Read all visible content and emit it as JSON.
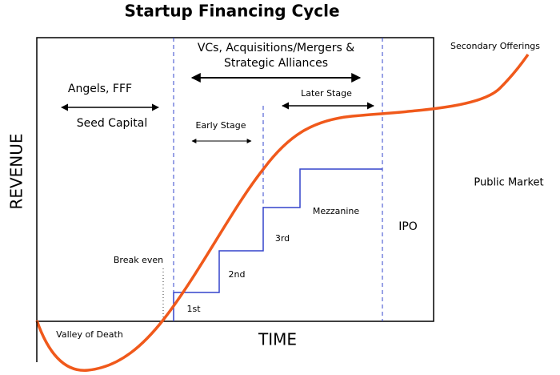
{
  "title": "Startup Financing Cycle",
  "axes": {
    "y_label": "REVENUE",
    "x_label": "TIME"
  },
  "phases": {
    "vcs_line1": "VCs, Acquisitions/Mergers &",
    "vcs_line2": "Strategic Alliances",
    "angels": "Angels, FFF",
    "seed": "Seed Capital",
    "early": "Early Stage",
    "later": "Later Stage",
    "secondary": "Secondary Offerings",
    "public": "Public Market"
  },
  "steps": {
    "mezzanine": "Mezzanine",
    "ipo": "IPO",
    "third": "3rd",
    "second": "2nd",
    "first": "1st"
  },
  "markers": {
    "break_even": "Break even",
    "valley": "Valley of Death"
  }
}
